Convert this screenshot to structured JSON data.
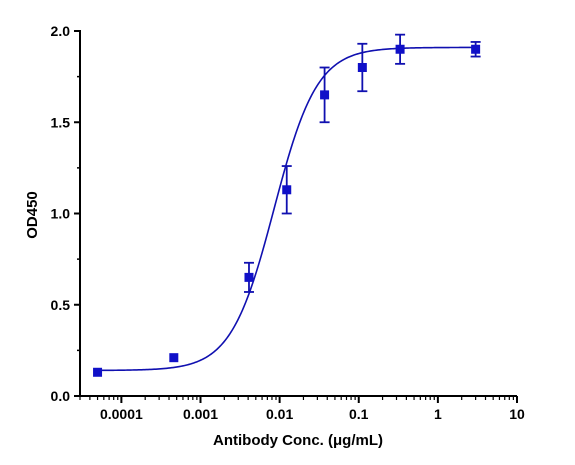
{
  "chart_data": {
    "type": "scatter",
    "xlabel": "Antibody Conc. (μg/mL)",
    "ylabel": "OD450",
    "x_scale": "log",
    "xlim": [
      3e-05,
      10
    ],
    "ylim": [
      0,
      2.0
    ],
    "x_ticks": [
      "0.0001",
      "0.001",
      "0.01",
      "0.1",
      "1",
      "10"
    ],
    "y_ticks": [
      "0.0",
      "0.5",
      "1.0",
      "1.5",
      "2.0"
    ],
    "grid": false,
    "legend": "none",
    "series": [
      {
        "x": [
          5e-05,
          0.00046,
          0.0041,
          0.0123,
          0.037,
          0.111,
          0.333,
          3.0
        ],
        "y": [
          0.13,
          0.21,
          0.65,
          1.13,
          1.65,
          1.8,
          1.9,
          1.9
        ],
        "error": [
          0.0,
          0.0,
          0.08,
          0.13,
          0.15,
          0.13,
          0.08,
          0.04
        ],
        "fit": {
          "model": "4PL",
          "bottom": 0.14,
          "top": 1.91,
          "ec50": 0.0085,
          "hill": 1.6
        }
      }
    ],
    "colors": {
      "marker": "#1010C8",
      "line": "#1010B0",
      "axis": "#000000"
    }
  }
}
